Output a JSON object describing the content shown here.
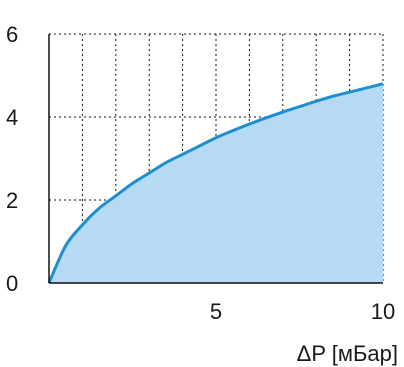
{
  "chart_data": {
    "type": "area",
    "title": "",
    "xlabel": "ΔP [мБар]",
    "ylabel": "",
    "xlim": [
      0,
      10
    ],
    "ylim": [
      0,
      6
    ],
    "x_ticks": [
      5,
      10
    ],
    "y_ticks": [
      0,
      2,
      4,
      6
    ],
    "grid": true,
    "grid_style": "dotted",
    "x_grid_step": 1,
    "y_grid_step": 2,
    "series": [
      {
        "x": [
          0,
          0.5,
          1,
          1.5,
          2,
          2.5,
          3,
          3.5,
          4,
          4.5,
          5,
          5.5,
          6,
          6.5,
          7,
          7.5,
          8,
          8.5,
          9,
          9.5,
          10
        ],
        "y": [
          0,
          0.9,
          1.4,
          1.8,
          2.1,
          2.4,
          2.65,
          2.9,
          3.1,
          3.3,
          3.5,
          3.67,
          3.83,
          3.98,
          4.12,
          4.25,
          4.38,
          4.5,
          4.6,
          4.7,
          4.8
        ],
        "line_color": "#1d8fd0",
        "fill_color": "#b6daf3"
      }
    ]
  }
}
